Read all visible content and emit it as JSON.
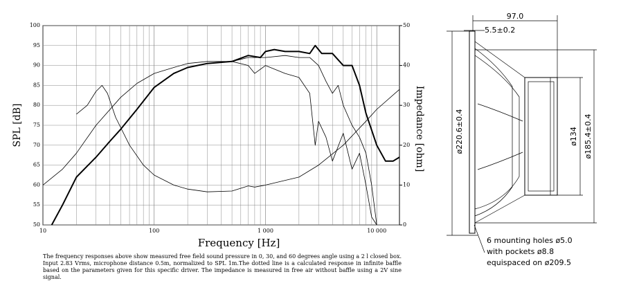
{
  "chart_data": {
    "type": "line",
    "xlabel": "Frequency [Hz]",
    "ylabel": "SPL [dB]",
    "y2label": "Impedance [ohm]",
    "xscale": "log",
    "xlim": [
      10,
      16000
    ],
    "xticks": [
      10,
      100,
      {
        "value": 1000,
        "label": "1 000"
      },
      {
        "value": 10000,
        "label": "10 000"
      }
    ],
    "xminor_ticks": [
      20,
      30,
      40,
      50,
      60,
      70,
      80,
      90,
      200,
      300,
      400,
      500,
      600,
      700,
      800,
      900,
      2000,
      3000,
      4000,
      5000,
      6000,
      7000,
      8000,
      9000
    ],
    "ylim": [
      50,
      100
    ],
    "yticks": [
      50,
      55,
      60,
      65,
      70,
      75,
      80,
      85,
      90,
      95,
      100
    ],
    "y2lim": [
      0,
      50
    ],
    "y2ticks": [
      0,
      10,
      20,
      30,
      40,
      50
    ],
    "grid": true,
    "series": [
      {
        "color": "#000000",
        "line_width": 2,
        "x": [
          12,
          15,
          20,
          30,
          40,
          50,
          70,
          100,
          150,
          200,
          300,
          500,
          700,
          900,
          1000,
          1200,
          1500,
          2000,
          2500,
          2800,
          3200,
          4000,
          5000,
          6000,
          7000,
          8000,
          10000,
          12000,
          14000,
          16000
        ],
        "values": [
          50,
          55,
          62,
          67,
          71,
          74,
          79,
          84.5,
          88,
          89.5,
          90.5,
          91,
          92.5,
          92,
          93.5,
          94,
          93.5,
          93.5,
          93,
          95,
          93,
          93,
          90,
          90,
          85,
          78,
          70,
          66,
          66,
          67
        ]
      },
      {
        "color": "#000000",
        "line_width": 0.8,
        "x": [
          300,
          500,
          700,
          1000,
          1500,
          2000,
          2500,
          3000,
          3500,
          4000,
          4500,
          5000,
          6000,
          7000,
          8000,
          9000,
          10000
        ],
        "values": [
          90.5,
          91,
          92,
          92,
          92.5,
          92,
          92,
          90,
          86,
          83,
          85,
          80,
          75,
          72,
          68,
          60,
          50
        ]
      },
      {
        "color": "#000000",
        "line_width": 0.8,
        "x": [
          500,
          700,
          800,
          1000,
          1500,
          2000,
          2500,
          2800,
          3000,
          3500,
          4000,
          5000,
          6000,
          7000,
          8000,
          9000,
          10000
        ],
        "values": [
          91,
          90,
          88,
          90,
          88,
          87,
          83,
          70,
          76,
          72,
          66,
          73,
          64,
          68,
          60,
          52,
          50
        ]
      },
      {
        "color": "#000000",
        "line_width": 0.8,
        "x": [
          10,
          15,
          20,
          30,
          50,
          70,
          100,
          150,
          200,
          300,
          500
        ],
        "values": [
          60,
          64,
          68,
          75,
          82,
          85.5,
          88,
          89.5,
          90.5,
          91,
          91
        ]
      },
      {
        "color": "#000000",
        "line_width": 0.8,
        "axis": "y2",
        "x": [
          20,
          25,
          30,
          34,
          38,
          45,
          60,
          80,
          100,
          150,
          200,
          300,
          500,
          700,
          800,
          1000,
          2000,
          3000,
          5000,
          8000,
          10000,
          16000
        ],
        "values": [
          27.8,
          30,
          33.5,
          35,
          33,
          27,
          20,
          15,
          12.5,
          10,
          9,
          8.3,
          8.5,
          9.8,
          9.5,
          10,
          12,
          15,
          20,
          26,
          29,
          34
        ]
      }
    ]
  },
  "caption": "The frequency responses above show measured free field sound pressure in 0, 30, and 60 degrees angle using a 2 l closed box. Input 2.83 Vrms, microphone distance 0.5m, normalized to SPL 1m.The dotted line is a calculated response in infinite baffle based on the parameters given for this specific driver. The impedance is measured in free air without baffle using a 2V sine signal.",
  "drawing": {
    "dimensions": [
      "97.0",
      "5.5±0.2",
      "ø220.6±0.4",
      "ø134",
      "ø185.4±0.4"
    ],
    "notes": [
      "6 mounting holes ø5.0",
      "with pockets ø8.8",
      "equispaced on ø209.5"
    ]
  }
}
